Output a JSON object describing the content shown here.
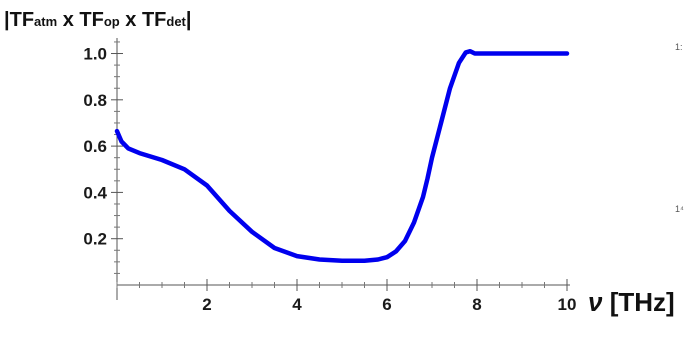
{
  "chart_data": {
    "type": "line",
    "title": {
      "prefix": "|TF",
      "sub1": "atm",
      "mid1": " x TF",
      "sub2": "op",
      "mid2": " x TF",
      "sub3": "det",
      "suffix": "|"
    },
    "xlabel": {
      "symbol": "ν",
      "unit": " [THz]"
    },
    "ylabel": "",
    "xlim": [
      0,
      10
    ],
    "ylim": [
      0,
      1.08
    ],
    "x_ticks": [
      2,
      4,
      6,
      8,
      10
    ],
    "y_ticks": [
      0.2,
      0.4,
      0.6,
      0.8,
      1.0
    ],
    "grid": false,
    "line_color": "#0000ee",
    "series": [
      {
        "name": "",
        "x": [
          0,
          0.1,
          0.25,
          0.5,
          1.0,
          1.5,
          2.0,
          2.5,
          3.0,
          3.5,
          4.0,
          4.5,
          5.0,
          5.5,
          5.8,
          6.0,
          6.2,
          6.4,
          6.6,
          6.8,
          6.9,
          7.0,
          7.2,
          7.4,
          7.6,
          7.75,
          7.85,
          7.95,
          8.0,
          8.5,
          9.0,
          10.0
        ],
        "y": [
          0.665,
          0.62,
          0.59,
          0.57,
          0.54,
          0.5,
          0.43,
          0.32,
          0.23,
          0.16,
          0.125,
          0.11,
          0.105,
          0.105,
          0.11,
          0.12,
          0.145,
          0.19,
          0.27,
          0.38,
          0.46,
          0.55,
          0.7,
          0.85,
          0.96,
          1.005,
          1.01,
          1.0,
          1.0,
          1.0,
          1.0,
          1.0
        ]
      }
    ],
    "side_marks": [
      "1:",
      "1⁴"
    ]
  }
}
